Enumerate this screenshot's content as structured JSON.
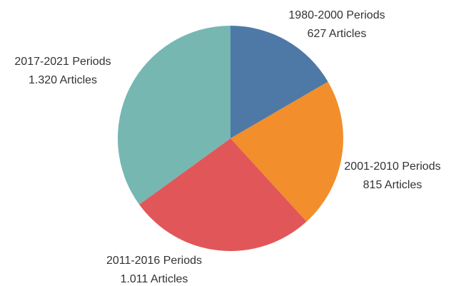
{
  "chart_data": {
    "type": "pie",
    "categories": [
      "1980-2000 Periods",
      "2001-2010 Periods",
      "2011-2016 Periods",
      "2017-2021 Periods"
    ],
    "values": [
      627,
      815,
      1011,
      1320
    ],
    "value_labels": [
      "627 Articles",
      "815 Articles",
      "1.011 Articles",
      "1.320 Articles"
    ],
    "colors": [
      "#4e79a7",
      "#f28e2b",
      "#e15759",
      "#76b7b2"
    ]
  }
}
